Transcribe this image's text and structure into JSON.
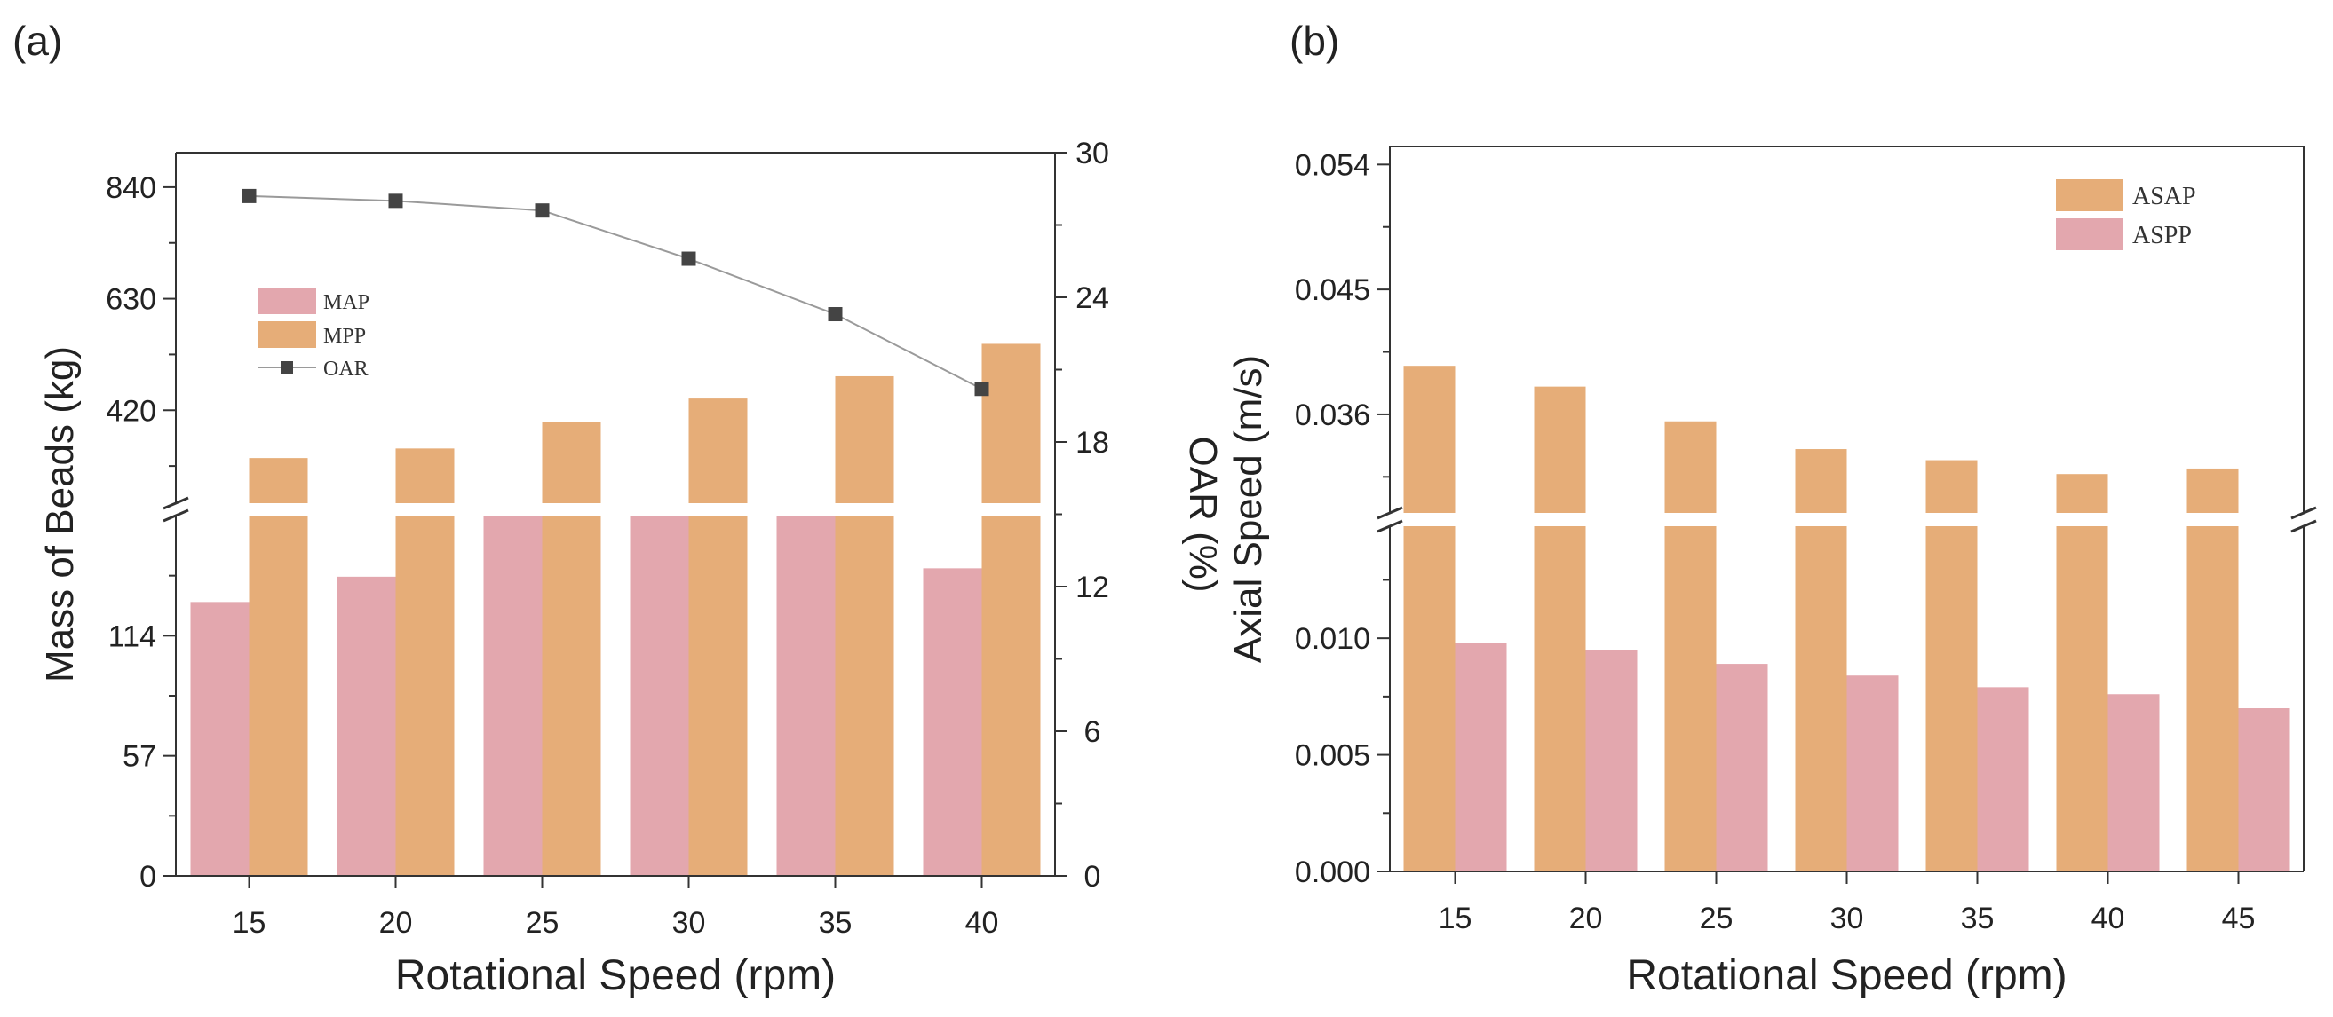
{
  "panels": [
    {
      "label": "(a)",
      "chart_data": {
        "type": "bar",
        "categories": [
          "15",
          "20",
          "25",
          "30",
          "35",
          "40"
        ],
        "series": [
          {
            "name": "MAP",
            "axis": "left",
            "color": "#e3a7ae",
            "values": [
              130,
              142,
              171,
              174,
              171,
              146
            ]
          },
          {
            "name": "MPP",
            "axis": "left",
            "color": "#e6ad78",
            "values": [
              330,
              348,
              398,
              442,
              484,
              545
            ]
          },
          {
            "name": "OAR",
            "type": "line",
            "axis": "right",
            "color": "#444444",
            "marker": "square",
            "values": [
              28.2,
              28.0,
              27.6,
              25.6,
              23.3,
              20.2
            ]
          }
        ],
        "xlabel": "Rotational Speed (rpm)",
        "ylabel": "Mass of  Beads (kg)",
        "ylabel_right": "OAR (%)",
        "yticks": [
          "0",
          "57",
          "114",
          "420",
          "630",
          "840"
        ],
        "yticks_right": [
          "0",
          "6",
          "12",
          "18",
          "24",
          "30"
        ],
        "ylim_right": [
          0,
          30
        ],
        "axis_break": {
          "lower": [
            0,
            171
          ],
          "upper": [
            245,
            905
          ]
        },
        "legend": {
          "placement": "upper-left",
          "entries": [
            "MAP",
            "MPP",
            "OAR"
          ]
        },
        "grid": false
      }
    },
    {
      "label": "(b)",
      "chart_data": {
        "type": "bar",
        "categories": [
          "15",
          "20",
          "25",
          "30",
          "35",
          "40",
          "45"
        ],
        "series": [
          {
            "name": "ASAP",
            "color": "#e6ad78",
            "values": [
              0.0395,
              0.038,
              0.0355,
              0.0335,
              0.0327,
              0.0317,
              0.0321
            ]
          },
          {
            "name": "ASPP",
            "color": "#e3a7ae",
            "values": [
              0.0098,
              0.0095,
              0.0089,
              0.0084,
              0.0079,
              0.0076,
              0.007
            ]
          }
        ],
        "xlabel": "Rotational Speed (rpm)",
        "ylabel": "Axial Speed (m/s)",
        "yticks": [
          "0.000",
          "0.005",
          "0.010",
          "0.036",
          "0.045",
          "0.054"
        ],
        "axis_break": {
          "lower": [
            0,
            0.0148
          ],
          "upper": [
            0.0289,
            0.0553
          ]
        },
        "legend": {
          "placement": "top-right",
          "entries": [
            "ASAP",
            "ASPP"
          ]
        },
        "grid": false
      }
    }
  ]
}
